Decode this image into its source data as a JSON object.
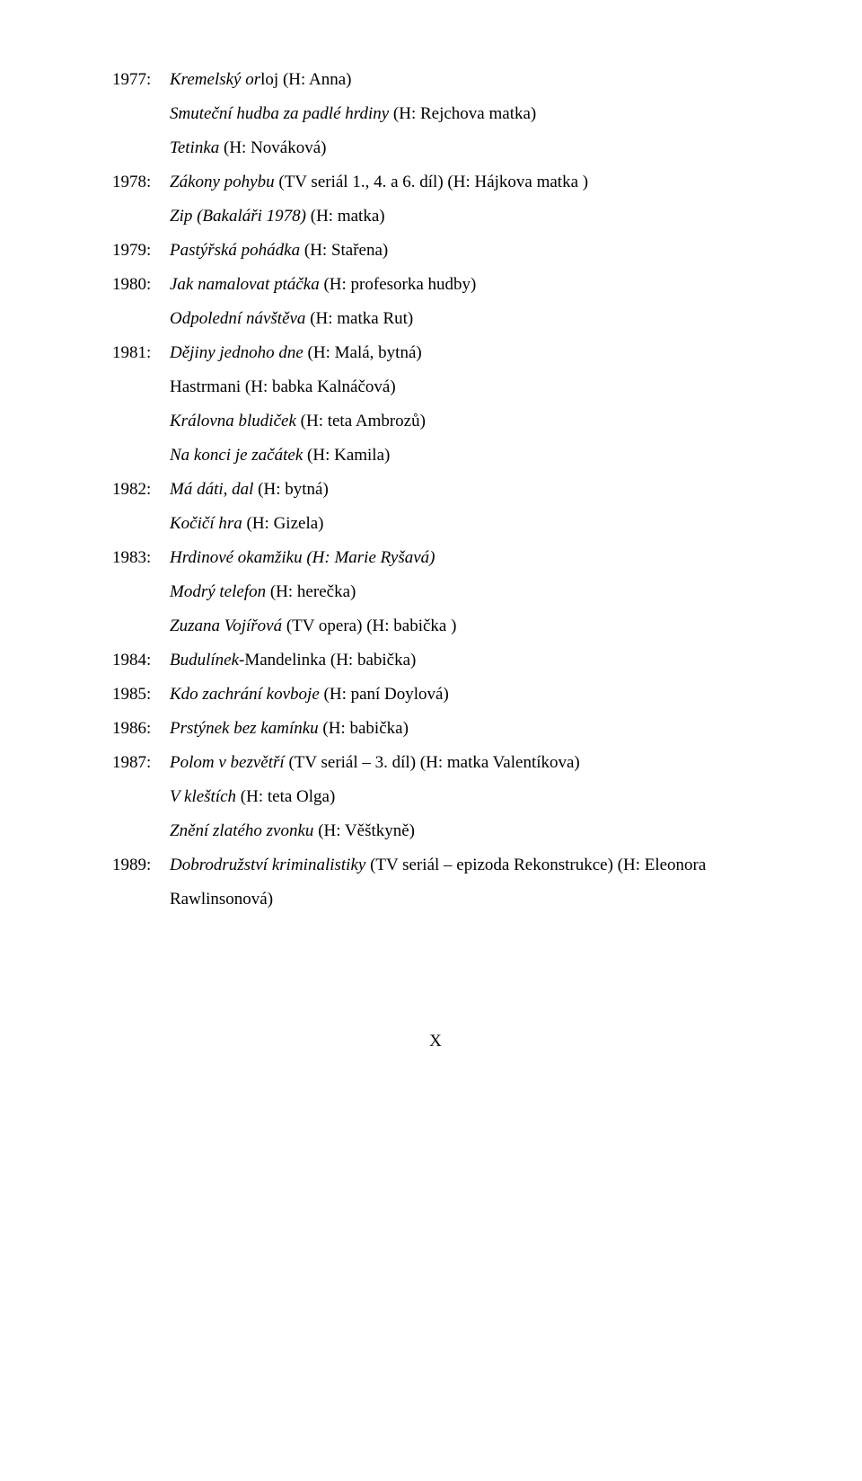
{
  "lines": [
    {
      "year": "1977:",
      "prefix_ital": "Kremelský or",
      "rest": "loj (H: Anna)"
    },
    {
      "cont": true,
      "ital": "Smuteční hudba za padlé hrdiny",
      "after": " (H: Rejchova matka)"
    },
    {
      "cont": true,
      "ital": "Tetinka",
      "after": " (H: Nováková)"
    },
    {
      "year": "1978:",
      "ital": "Zákony pohybu",
      "after": " (TV seriál 1., 4. a 6. díl) (H: Hájkova matka )"
    },
    {
      "cont": true,
      "ital": "Zip (Bakaláři 1978) ",
      "after": "(H: matka)"
    },
    {
      "year": "1979:",
      "ital": "Pastýřská pohádka ",
      "after": "(H: Stařena)"
    },
    {
      "year": "1980:",
      "ital": "Jak namalovat ptáčka ",
      "after": "(H: profesorka hudby)"
    },
    {
      "cont": true,
      "ital": "Odpolední návštěva ",
      "after": "(H: matka Rut)"
    },
    {
      "year": "1981:",
      "ital": "Dějiny jednoho dne ",
      "after": "(H: Malá, bytná)"
    },
    {
      "cont": true,
      "plain": "Hastrmani (H: babka Kalnáčová)"
    },
    {
      "cont": true,
      "ital": "Královna bludiček ",
      "after": "(H: teta Ambrozů)"
    },
    {
      "cont": true,
      "ital": "Na konci je začátek ",
      "after": "(H: Kamila)"
    },
    {
      "year": "1982:",
      "ital": "Má dáti, dal ",
      "after": "(H: bytná)"
    },
    {
      "cont": true,
      "ital": "Kočičí hra ",
      "after": "(H: Gizela)"
    },
    {
      "year": "1983:",
      "ital": "Hrdinové okamžiku (H: Marie Ryšavá)",
      "after": ""
    },
    {
      "cont": true,
      "ital": "Modrý telefon ",
      "after": "(H: herečka)"
    },
    {
      "cont": true,
      "ital": "Zuzana Vojířová ",
      "after": "(TV opera) (H: babička )"
    },
    {
      "year": "1984:",
      "ital": "Budulínek-",
      "after": "Mandelinka (H: babička)"
    },
    {
      "year": "1985:",
      "ital": "Kdo zachrání kovboje ",
      "after": "(H: paní Doylová)"
    },
    {
      "year": "1986:",
      "ital": "Prstýnek bez kamínku ",
      "after": "(H: babička)"
    },
    {
      "year": "1987:",
      "ital": "Polom v bezvětří ",
      "after": "(TV seriál – 3. díl) (H: matka Valentíkova)"
    },
    {
      "cont": true,
      "ital": "V kleštích ",
      "after": "(H: teta Olga)"
    },
    {
      "cont": true,
      "ital": "Znění zlatého zvonku ",
      "after": "(H: Věštkyně)"
    },
    {
      "year": "1989:",
      "ital": "Dobrodružství kriminalistiky ",
      "after": "(TV seriál – epizoda Rekonstrukce) (H: Eleonora",
      "justify": true
    },
    {
      "cont": true,
      "plain": "Rawlinsonová)"
    }
  ],
  "page_number": "X"
}
